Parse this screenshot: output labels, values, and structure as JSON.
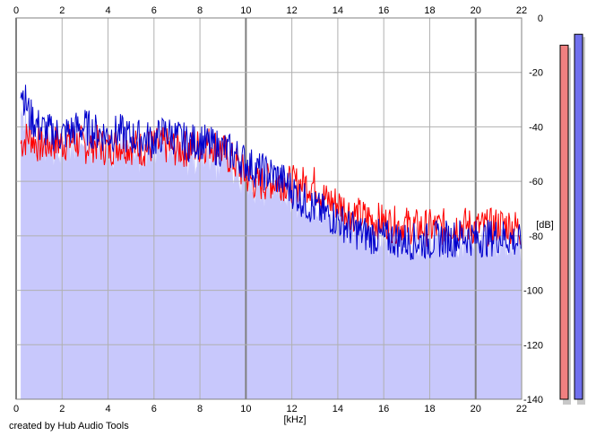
{
  "footer": {
    "credit": "created by Hub Audio Tools"
  },
  "chart_data": {
    "type": "line",
    "xlabel": "[kHz]",
    "ylabel": "[dB]",
    "xlim": [
      0,
      22
    ],
    "ylim": [
      -140,
      0
    ],
    "x_ticks": [
      0,
      2,
      4,
      6,
      8,
      10,
      12,
      14,
      16,
      18,
      20,
      22
    ],
    "y_ticks": [
      0,
      -20,
      -40,
      -60,
      -80,
      -100,
      -120,
      -140
    ],
    "grid": true,
    "background_fill": "#c8c8fc",
    "series": [
      {
        "color": "#ff0000",
        "x": [
          0.2,
          0.6,
          1,
          1.5,
          2,
          2.5,
          3,
          3.5,
          4,
          4.5,
          5,
          5.5,
          6,
          6.5,
          7,
          7.5,
          8,
          8.5,
          9,
          9.5,
          10,
          10.5,
          11,
          11.5,
          12,
          12.5,
          13,
          13.5,
          14,
          14.5,
          15,
          15.5,
          16,
          16.5,
          17,
          17.5,
          18,
          18.5,
          19,
          19.5,
          20,
          20.5,
          21,
          21.5,
          22
        ],
        "y": [
          -46,
          -43,
          -47,
          -46,
          -46,
          -45,
          -47,
          -46,
          -48,
          -46,
          -47,
          -48,
          -47,
          -47,
          -48,
          -48,
          -47,
          -46,
          -49,
          -53,
          -58,
          -61,
          -60,
          -60,
          -61,
          -61,
          -61,
          -67,
          -68,
          -71,
          -73,
          -74,
          -75,
          -76,
          -76,
          -77,
          -77,
          -77,
          -76,
          -76,
          -77,
          -77,
          -76,
          -76,
          -78
        ]
      },
      {
        "color": "#0000cc",
        "x": [
          0.2,
          0.6,
          1,
          1.5,
          2,
          2.5,
          3,
          3.5,
          4,
          4.5,
          5,
          5.5,
          6,
          6.5,
          7,
          7.5,
          8,
          8.5,
          9,
          9.5,
          10,
          10.5,
          11,
          11.5,
          12,
          12.5,
          13,
          13.5,
          14,
          14.5,
          15,
          15.5,
          16,
          16.5,
          17,
          17.5,
          18,
          18.5,
          19,
          19.5,
          20,
          20.5,
          21,
          21.5,
          22
        ],
        "y": [
          -25,
          -36,
          -40,
          -42,
          -43,
          -41,
          -40,
          -42,
          -43,
          -42,
          -44,
          -44,
          -45,
          -42,
          -44,
          -46,
          -45,
          -47,
          -48,
          -50,
          -53,
          -56,
          -57,
          -59,
          -63,
          -67,
          -70,
          -72,
          -74,
          -77,
          -79,
          -80,
          -81,
          -81,
          -82,
          -82,
          -82,
          -81,
          -81,
          -80,
          -81,
          -81,
          -80,
          -81,
          -83
        ]
      }
    ],
    "level_meters": [
      {
        "channel": "left",
        "color": "#f08080",
        "top_db": -10
      },
      {
        "channel": "right",
        "color": "#7070ee",
        "top_db": -6
      }
    ]
  }
}
